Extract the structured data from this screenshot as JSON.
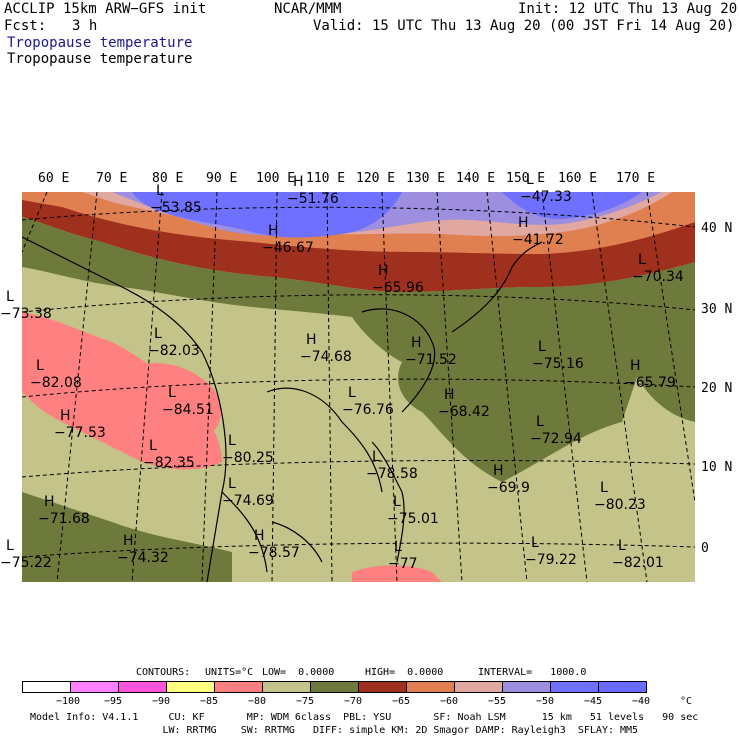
{
  "header": {
    "model": "ACCLIP 15km ARW−GFS init",
    "org": "NCAR/MMM",
    "init": "Init: 12 UTC Thu 13 Aug 20",
    "fcst_label": "Fcst:",
    "fcst_value": "3 h",
    "valid": "Valid: 15 UTC Thu 13 Aug 20 (00 JST Fri 14 Aug 20)",
    "field1": "Tropopause temperature",
    "field2": "Tropopause temperature"
  },
  "axes": {
    "lon_labels": [
      "60 E",
      "70 E",
      "80 E",
      "90 E",
      "100 E",
      "110 E",
      "120 E",
      "130 E",
      "140 E",
      "150 E",
      "160 E",
      "170 E"
    ],
    "lat_labels": [
      "40 N",
      "30 N",
      "20 N",
      "10 N",
      "0"
    ]
  },
  "map_labels": [
    {
      "kind": "L",
      "value": "−53.85"
    },
    {
      "kind": "H",
      "value": "−51.76"
    },
    {
      "kind": "H",
      "value": "−46.67"
    },
    {
      "kind": "L",
      "value": "−47.33"
    },
    {
      "kind": "H",
      "value": "−41.72"
    },
    {
      "kind": "L",
      "value": "−70.34"
    },
    {
      "kind": "H",
      "value": "−65.96"
    },
    {
      "kind": "L",
      "value": "−82.03"
    },
    {
      "kind": "H",
      "value": "−74.68"
    },
    {
      "kind": "H",
      "value": "−71.52"
    },
    {
      "kind": "L",
      "value": "−75.16"
    },
    {
      "kind": "H",
      "value": "−65.79"
    },
    {
      "kind": "L",
      "value": "−82.08"
    },
    {
      "kind": "L",
      "value": "−84.51"
    },
    {
      "kind": "L",
      "value": "−76.76"
    },
    {
      "kind": "H",
      "value": "−68.42"
    },
    {
      "kind": "H",
      "value": "−77.53"
    },
    {
      "kind": "L",
      "value": "−72.94"
    },
    {
      "kind": "L",
      "value": "−82.35"
    },
    {
      "kind": "L",
      "value": "−80.25"
    },
    {
      "kind": "L",
      "value": "−78.58"
    },
    {
      "kind": "H",
      "value": "−69.9"
    },
    {
      "kind": "H",
      "value": "−71.68"
    },
    {
      "kind": "L",
      "value": "−74.69"
    },
    {
      "kind": "L",
      "value": "−80.23"
    },
    {
      "kind": "L",
      "value": "−75.01"
    },
    {
      "kind": "H",
      "value": "−78.57"
    },
    {
      "kind": "L",
      "value": "−79.22"
    },
    {
      "kind": "L",
      "value": "−82.01"
    },
    {
      "kind": "H",
      "value": "−74.32"
    },
    {
      "kind": "L",
      "value": "−73.38"
    },
    {
      "kind": "L",
      "value": "−75.22"
    },
    {
      "kind": "L",
      "value": "−77"
    }
  ],
  "contours_line": {
    "contours": "CONTOURS:",
    "units": "UNITS=°C",
    "low": "LOW=  0.0000",
    "high": "HIGH=  0.0000",
    "interval": "INTERVAL=   1000.0"
  },
  "colorbar": {
    "labels": [
      "−100",
      "−95",
      "−90",
      "−85",
      "−80",
      "−75",
      "−70",
      "−65",
      "−60",
      "−55",
      "−50",
      "−45",
      "−40",
      "°C"
    ],
    "colors": [
      "#ffffff",
      "#ff80ff",
      "#ff55dd",
      "#ffff80",
      "#ff8080",
      "#c4c48a",
      "#6e7a3c",
      "#a0301e",
      "#e08050",
      "#e0a8a0",
      "#9e8ee0",
      "#7070ff",
      "#6a6aff"
    ]
  },
  "model_info": {
    "line1": "Model Info: V4.1.1     CU: KF       MP: WDM 6class  PBL: YSU       SF: Noah LSM      15 km   51 levels   90 sec",
    "line2": "                      LW: RRTMG    SW: RRTMG   DIFF: simple KM: 2D Smagor DAMP: Rayleigh3  SFLAY: MM5"
  },
  "colors": {
    "cold_pink": "#ff8080",
    "tan": "#c4c48a",
    "olive": "#6e7a3c",
    "dark_red": "#a0301e",
    "orange": "#e08050",
    "light_pink": "#e0a8a0",
    "lavender": "#9e8ee0",
    "blue": "#7070ff"
  }
}
